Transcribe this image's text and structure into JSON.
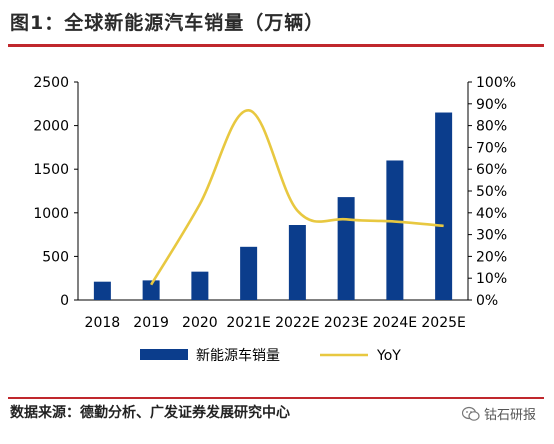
{
  "title": "图1：全球新能源汽车销量（万辆）",
  "source": "数据来源：德勤分析、广发证券发展研究中心",
  "watermark": "钴石研报",
  "colors": {
    "bar": "#0b3d8c",
    "line": "#e8c840",
    "accent": "#c0282d"
  },
  "chart_data": {
    "type": "bar",
    "categories": [
      "2018",
      "2019",
      "2020",
      "2021E",
      "2022E",
      "2023E",
      "2024E",
      "2025E"
    ],
    "series": [
      {
        "name": "新能源车销量",
        "type": "bar",
        "axis": "left",
        "values": [
          210,
          225,
          325,
          610,
          860,
          1180,
          1600,
          2150
        ]
      },
      {
        "name": "YoY",
        "type": "line",
        "axis": "right",
        "smooth": true,
        "x": [
          "2019",
          "2020",
          "2021E",
          "2022E",
          "2023E",
          "2024E",
          "2025E"
        ],
        "values": [
          0.07,
          0.44,
          0.87,
          0.41,
          0.37,
          0.36,
          0.34
        ]
      }
    ],
    "y_left": {
      "min": 0,
      "max": 2500,
      "ticks": [
        "0",
        "500",
        "1000",
        "1500",
        "2000",
        "2500"
      ]
    },
    "y_right": {
      "min": 0,
      "max": 1,
      "ticks": [
        "0%",
        "10%",
        "20%",
        "30%",
        "40%",
        "50%",
        "60%",
        "70%",
        "80%",
        "90%",
        "100%"
      ]
    },
    "legend_position": "bottom",
    "grid": false
  }
}
